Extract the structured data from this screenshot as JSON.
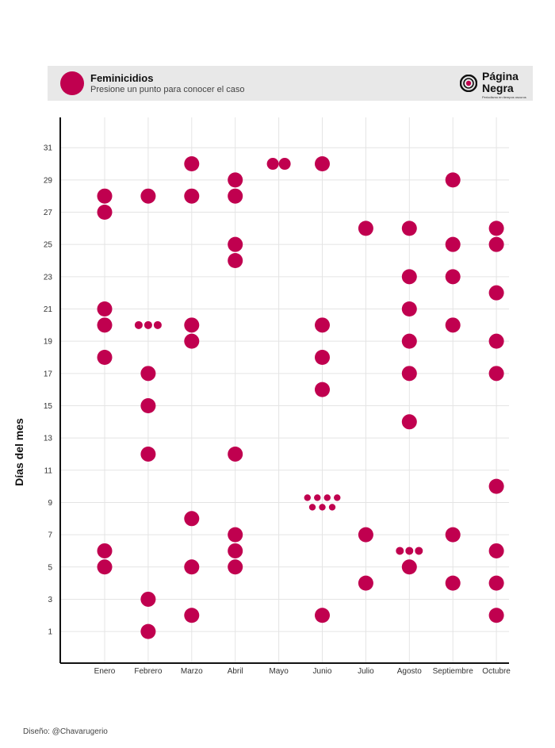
{
  "legend": {
    "title": "Feminicidios",
    "subtitle": "Presione un punto para conocer el caso"
  },
  "logo": {
    "line1": "Página",
    "line2": "Negra",
    "tagline": "Periodismo en tiempos oscuros"
  },
  "credit": "Diseño: @Chavarugerio",
  "colors": {
    "dot": "#c0004f",
    "grid": "#e4e4e4",
    "axis": "#111111",
    "legend_bg": "#e8e8e8"
  },
  "chart_data": {
    "type": "scatter",
    "ylabel": "Días del mes",
    "xlabel": "",
    "categories": [
      "Enero",
      "Febrero",
      "Marzo",
      "Abril",
      "Mayo",
      "Junio",
      "Julio",
      "Agosto",
      "Septiembre",
      "Octubre"
    ],
    "yticks": [
      1,
      3,
      5,
      7,
      9,
      11,
      13,
      15,
      17,
      19,
      21,
      23,
      25,
      27,
      29,
      31
    ],
    "ylim": [
      -0.8,
      32.5
    ],
    "grid": true,
    "points": [
      {
        "month": "Enero",
        "day": 28
      },
      {
        "month": "Enero",
        "day": 27
      },
      {
        "month": "Enero",
        "day": 21
      },
      {
        "month": "Enero",
        "day": 20
      },
      {
        "month": "Enero",
        "day": 18
      },
      {
        "month": "Enero",
        "day": 6
      },
      {
        "month": "Enero",
        "day": 5
      },
      {
        "month": "Febrero",
        "day": 28
      },
      {
        "month": "Febrero",
        "day": 20,
        "count": 3
      },
      {
        "month": "Febrero",
        "day": 17
      },
      {
        "month": "Febrero",
        "day": 15
      },
      {
        "month": "Febrero",
        "day": 12
      },
      {
        "month": "Febrero",
        "day": 3
      },
      {
        "month": "Febrero",
        "day": 1
      },
      {
        "month": "Marzo",
        "day": 30
      },
      {
        "month": "Marzo",
        "day": 28
      },
      {
        "month": "Marzo",
        "day": 20
      },
      {
        "month": "Marzo",
        "day": 19
      },
      {
        "month": "Marzo",
        "day": 8
      },
      {
        "month": "Marzo",
        "day": 5
      },
      {
        "month": "Marzo",
        "day": 2
      },
      {
        "month": "Abril",
        "day": 29
      },
      {
        "month": "Abril",
        "day": 28
      },
      {
        "month": "Abril",
        "day": 25
      },
      {
        "month": "Abril",
        "day": 24
      },
      {
        "month": "Abril",
        "day": 12
      },
      {
        "month": "Abril",
        "day": 7
      },
      {
        "month": "Abril",
        "day": 6
      },
      {
        "month": "Abril",
        "day": 5
      },
      {
        "month": "Mayo",
        "day": 30,
        "count": 2
      },
      {
        "month": "Junio",
        "day": 30
      },
      {
        "month": "Junio",
        "day": 20
      },
      {
        "month": "Junio",
        "day": 18
      },
      {
        "month": "Junio",
        "day": 16
      },
      {
        "month": "Junio",
        "day": 9,
        "count": 7
      },
      {
        "month": "Junio",
        "day": 2
      },
      {
        "month": "Julio",
        "day": 26
      },
      {
        "month": "Julio",
        "day": 7
      },
      {
        "month": "Julio",
        "day": 4
      },
      {
        "month": "Agosto",
        "day": 26
      },
      {
        "month": "Agosto",
        "day": 23
      },
      {
        "month": "Agosto",
        "day": 21
      },
      {
        "month": "Agosto",
        "day": 19
      },
      {
        "month": "Agosto",
        "day": 17
      },
      {
        "month": "Agosto",
        "day": 14
      },
      {
        "month": "Agosto",
        "day": 6,
        "count": 3
      },
      {
        "month": "Agosto",
        "day": 5
      },
      {
        "month": "Septiembre",
        "day": 29
      },
      {
        "month": "Septiembre",
        "day": 25
      },
      {
        "month": "Septiembre",
        "day": 23
      },
      {
        "month": "Septiembre",
        "day": 20
      },
      {
        "month": "Septiembre",
        "day": 7
      },
      {
        "month": "Septiembre",
        "day": 4
      },
      {
        "month": "Octubre",
        "day": 26
      },
      {
        "month": "Octubre",
        "day": 25
      },
      {
        "month": "Octubre",
        "day": 22
      },
      {
        "month": "Octubre",
        "day": 19
      },
      {
        "month": "Octubre",
        "day": 17
      },
      {
        "month": "Octubre",
        "day": 10
      },
      {
        "month": "Octubre",
        "day": 6
      },
      {
        "month": "Octubre",
        "day": 4
      },
      {
        "month": "Octubre",
        "day": 2
      }
    ]
  }
}
